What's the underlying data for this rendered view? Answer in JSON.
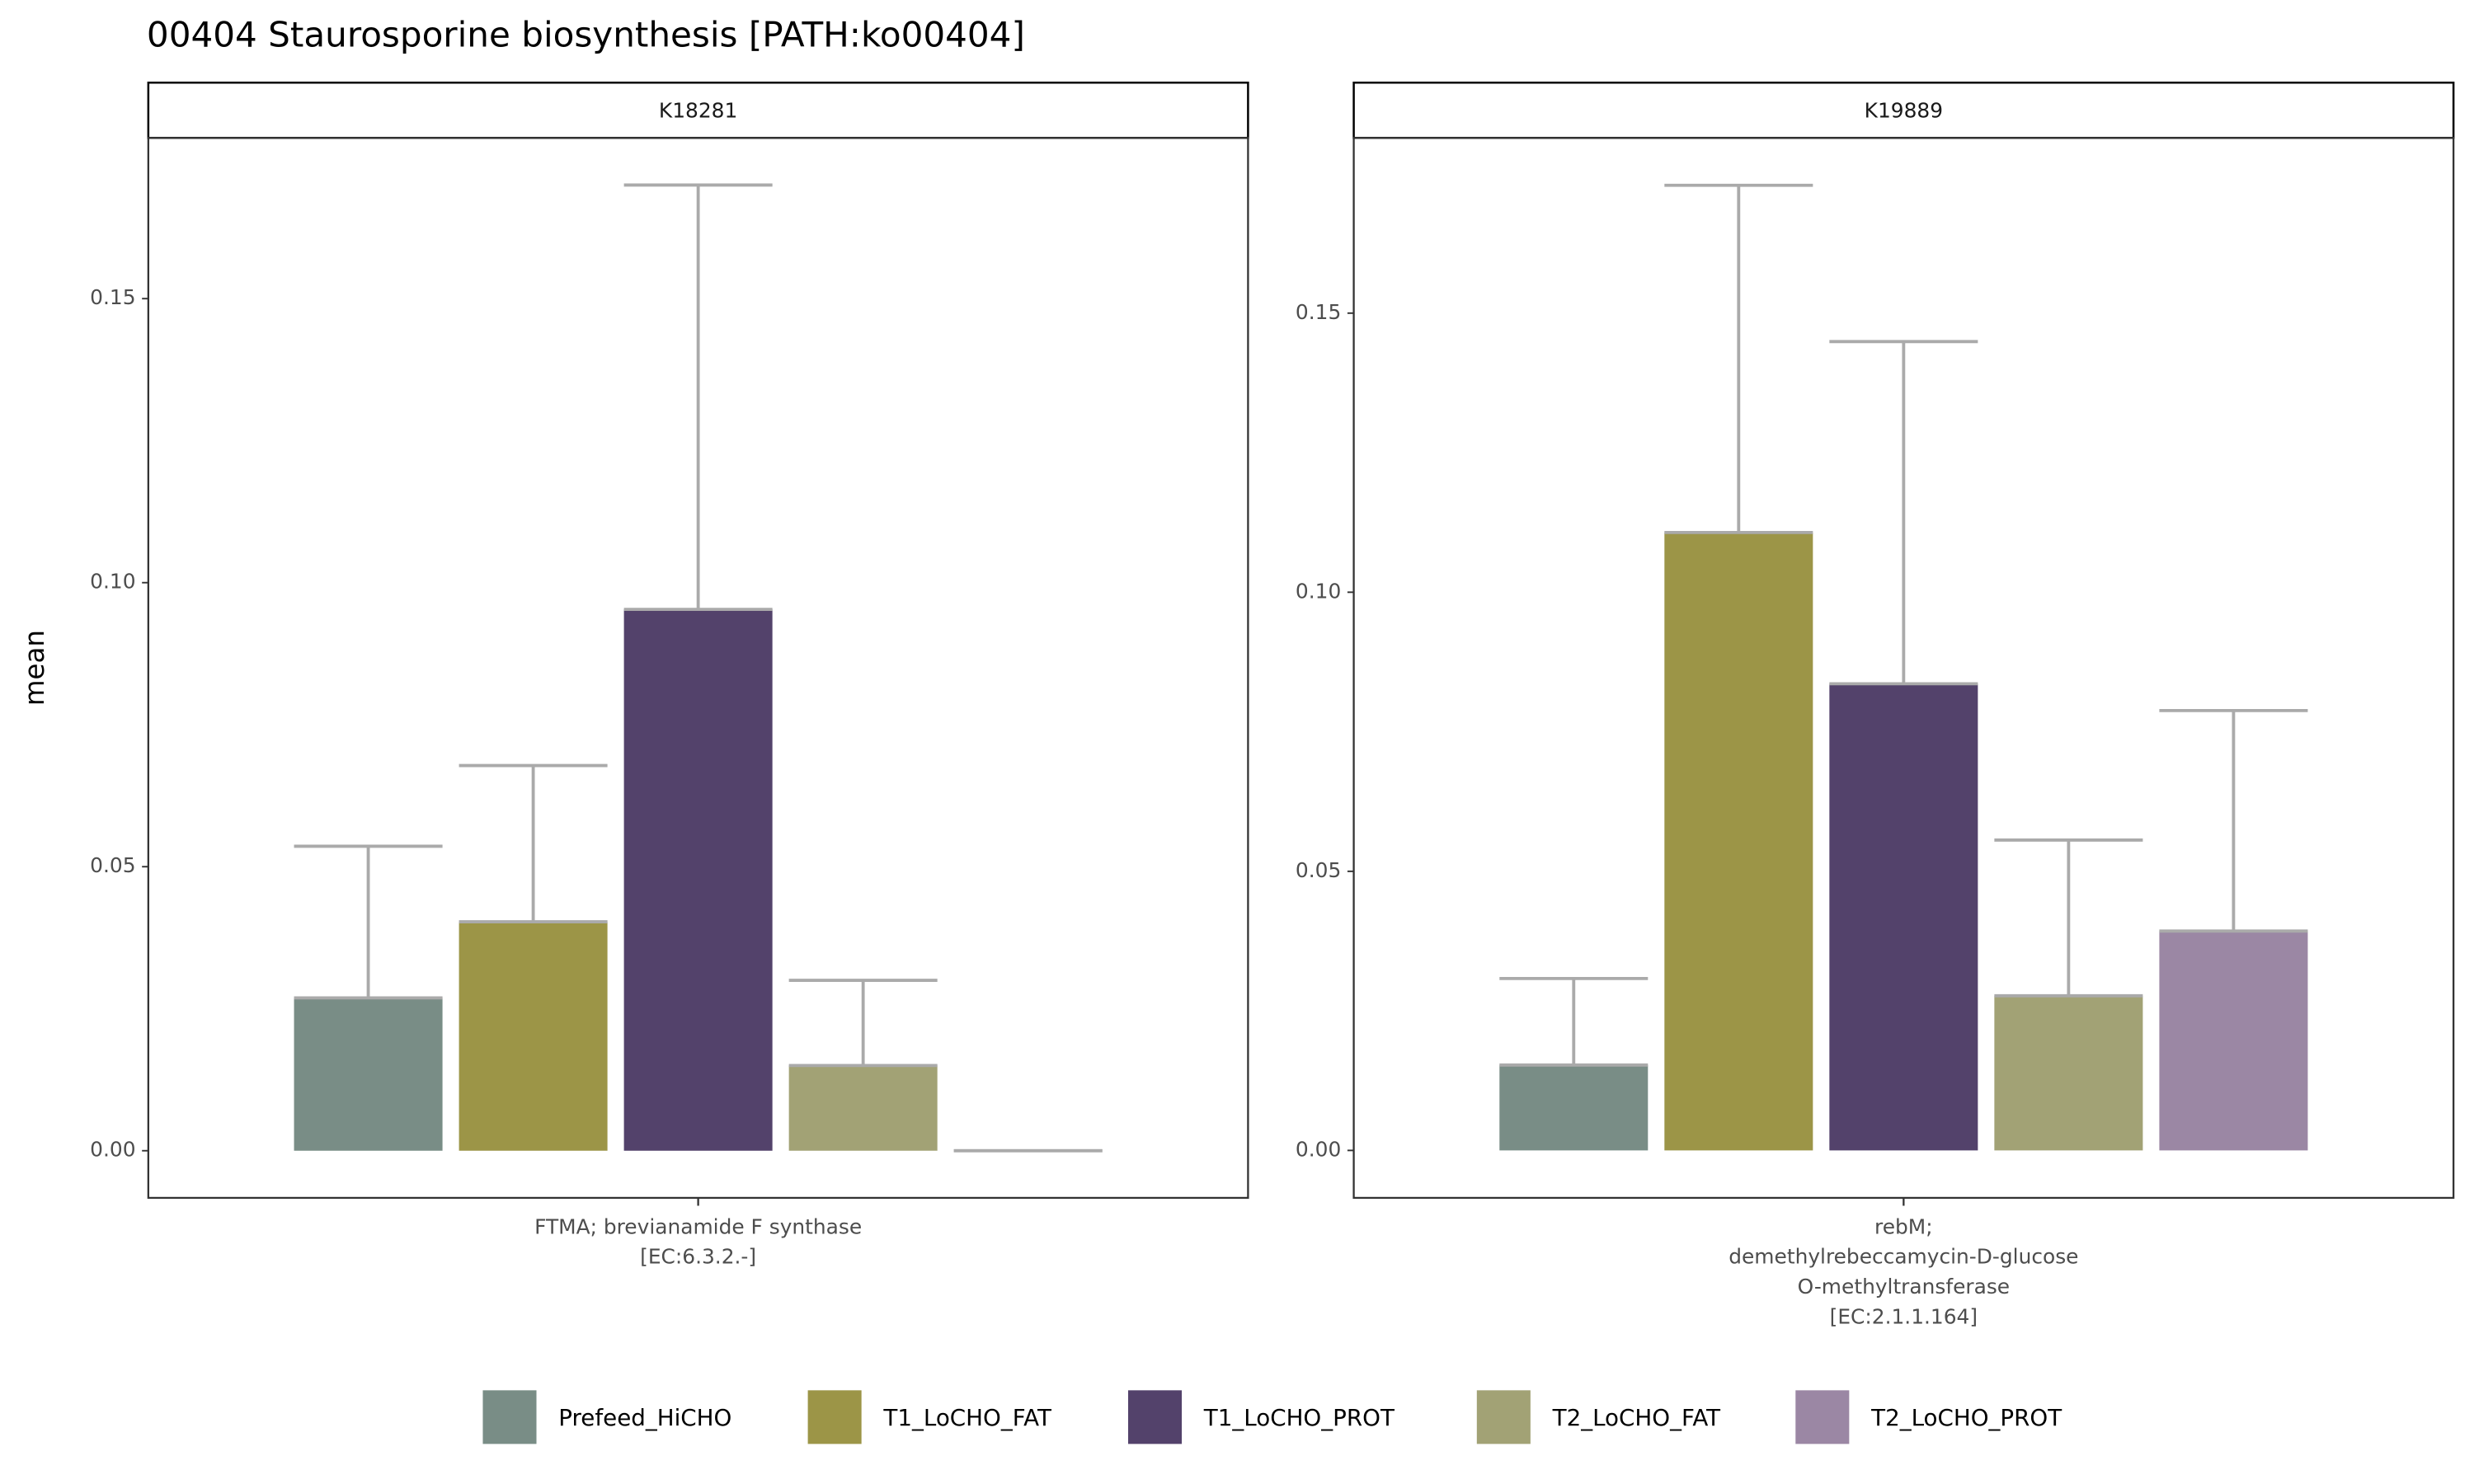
{
  "chart_data": {
    "type": "bar",
    "title": "00404 Staurosporine biosynthesis [PATH:ko00404]",
    "y_label": "mean",
    "facets": [
      {
        "label": "K18281",
        "category": [
          "FTMA; brevianamide F synthase",
          "[EC:6.3.2.-]"
        ],
        "ylim": [
          -0.0083,
          0.1783
        ],
        "yticks": [
          {
            "value": 0,
            "label": "0.00"
          },
          {
            "value": 0.05,
            "label": "0.05"
          },
          {
            "value": 0.1,
            "label": "0.10"
          },
          {
            "value": 0.15,
            "label": "0.15"
          }
        ]
      },
      {
        "label": "K19889",
        "category": [
          "rebM;",
          "demethylrebeccamycin-D-glucose",
          "O-methyltransferase",
          "[EC:2.1.1.164]"
        ],
        "ylim": [
          -0.0085,
          0.1814
        ],
        "yticks": [
          {
            "value": 0,
            "label": "0.00"
          },
          {
            "value": 0.05,
            "label": "0.05"
          },
          {
            "value": 0.1,
            "label": "0.10"
          },
          {
            "value": 0.15,
            "label": "0.15"
          }
        ]
      }
    ],
    "series": [
      {
        "name": "Prefeed_HiCHO",
        "color": "#798d86",
        "values": [
          0.0269,
          0.0153
        ],
        "errors": [
          0.0267,
          0.0155
        ]
      },
      {
        "name": "T1_LoCHO_FAT",
        "color": "#9c9547",
        "values": [
          0.0403,
          0.1107
        ],
        "errors": [
          0.0275,
          0.0622
        ]
      },
      {
        "name": "T1_LoCHO_PROT",
        "color": "#53426b",
        "values": [
          0.0953,
          0.0836
        ],
        "errors": [
          0.0747,
          0.0613
        ]
      },
      {
        "name": "T2_LoCHO_FAT",
        "color": "#a2a275",
        "values": [
          0.015,
          0.0277
        ],
        "errors": [
          0.015,
          0.0279
        ]
      },
      {
        "name": "T2_LoCHO_PROT",
        "color": "#9b87a4",
        "values": [
          0,
          0.0393
        ],
        "errors": [
          0,
          0.0395
        ]
      }
    ],
    "error_color": "#aaaaaa"
  }
}
